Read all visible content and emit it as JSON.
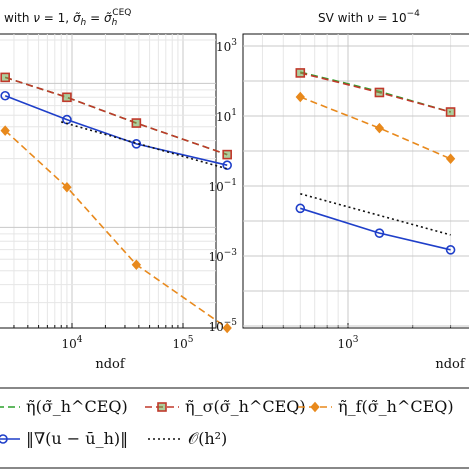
{
  "chart_data": [
    {
      "type": "line",
      "title": "with ν = 1, σ̃_h = σ̃_h^CEQ",
      "xlabel": "ndof",
      "ylabel": "",
      "x_scale": "log",
      "y_scale": "log",
      "xlim": [
        2500,
        300000
      ],
      "ylim": [
        0.2,
        20
      ],
      "x_ticks": [
        {
          "value": 10000,
          "label": "10^4"
        },
        {
          "value": 100000,
          "label": "10^5"
        }
      ],
      "grid": true,
      "series": [
        {
          "key": "eta_tot",
          "color": "#2ca02c",
          "dash": "7 4",
          "marker": "none",
          "x": [
            2500,
            9000,
            38000,
            250000
          ],
          "y": [
            11,
            8.0,
            5.3,
            3.2
          ]
        },
        {
          "key": "eta_sigma",
          "color": "#c0392b",
          "dash": "7 4",
          "marker": "square",
          "x": [
            2500,
            9000,
            38000,
            250000
          ],
          "y": [
            11,
            8.0,
            5.3,
            3.2
          ]
        },
        {
          "key": "eta_f",
          "color": "#e8891c",
          "dash": "7 4",
          "marker": "diamond",
          "x": [
            2500,
            9000,
            38000,
            250000
          ],
          "y": [
            4.7,
            1.9,
            0.55,
            0.2
          ]
        },
        {
          "key": "err",
          "color": "#1f3fc9",
          "dash": "",
          "marker": "circle",
          "x": [
            2500,
            9000,
            38000,
            250000
          ],
          "y": [
            8.2,
            5.6,
            3.8,
            2.7
          ]
        },
        {
          "key": "ref",
          "color": "#111111",
          "dash": "2 3",
          "marker": "none",
          "x": [
            8000,
            250000
          ],
          "y": [
            5.4,
            2.55
          ]
        }
      ]
    },
    {
      "type": "line",
      "title": "SV with ν = 10⁻⁴",
      "xlabel": "ndof",
      "ylabel": "",
      "x_scale": "log",
      "y_scale": "log",
      "xlim": [
        250,
        3500
      ],
      "ylim": [
        1e-05,
        1000
      ],
      "x_ticks": [
        {
          "value": 1000,
          "label": "10^3"
        }
      ],
      "y_ticks": [
        {
          "value": 1000,
          "label": "10^3"
        },
        {
          "value": 10,
          "label": "10^1"
        },
        {
          "value": 0.1,
          "label": "10^-1"
        },
        {
          "value": 0.001,
          "label": "10^-3"
        },
        {
          "value": 1e-05,
          "label": "10^-5"
        }
      ],
      "grid": true,
      "series": [
        {
          "key": "eta_tot",
          "color": "#2ca02c",
          "dash": "7 4",
          "marker": "none",
          "x": [
            600,
            1400,
            3000
          ],
          "y": [
            180,
            50,
            13
          ]
        },
        {
          "key": "eta_sigma",
          "color": "#c0392b",
          "dash": "7 4",
          "marker": "square",
          "x": [
            600,
            1400,
            3000
          ],
          "y": [
            170,
            47,
            13
          ]
        },
        {
          "key": "eta_f",
          "color": "#e8891c",
          "dash": "7 4",
          "marker": "diamond",
          "x": [
            600,
            1400,
            3000
          ],
          "y": [
            35,
            4.5,
            0.6
          ]
        },
        {
          "key": "err",
          "color": "#1f3fc9",
          "dash": "",
          "marker": "circle",
          "x": [
            600,
            1400,
            3000
          ],
          "y": [
            0.023,
            0.0045,
            0.0015
          ]
        },
        {
          "key": "ref",
          "color": "#111111",
          "dash": "2 3",
          "marker": "none",
          "x": [
            600,
            3000
          ],
          "y": [
            0.06,
            0.004
          ]
        }
      ]
    }
  ],
  "legend": {
    "placement": "bottom",
    "entries": [
      {
        "key": "eta_tot",
        "label": "η̃(σ̃_h^CEQ)",
        "color": "#2ca02c",
        "marker": "none",
        "dash": "7 4"
      },
      {
        "key": "eta_sigma",
        "label": "η̃_σ(σ̃_h^CEQ)",
        "color": "#c0392b",
        "marker": "square",
        "dash": "7 4"
      },
      {
        "key": "eta_f",
        "label": "η̃_f(σ̃_h^CEQ)",
        "color": "#e8891c",
        "marker": "diamond",
        "dash": "7 4"
      },
      {
        "key": "err",
        "label": "‖∇(u − ū_h)‖",
        "color": "#1f3fc9",
        "marker": "circle",
        "dash": ""
      },
      {
        "key": "ref",
        "label": "𝒪(h²)",
        "color": "#111111",
        "marker": "none",
        "dash": "2 3"
      }
    ]
  }
}
